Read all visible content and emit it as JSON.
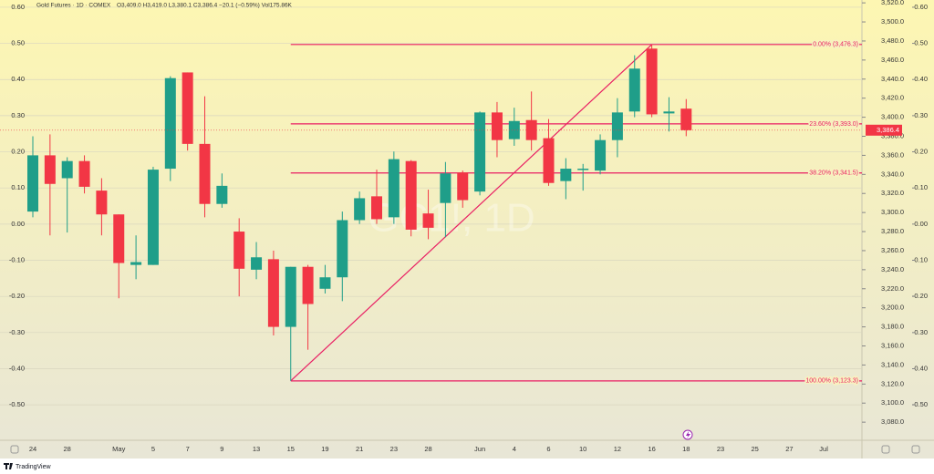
{
  "chart_data": {
    "type": "candlestick",
    "title": "Gold Futures · 1D · COMEX",
    "ohlc_text": "O3,409.0 H3,419.0 L3,380.1 C3,386.4 −20.1 (−0.59%) Vol175.86K",
    "watermark": "GC1!, 1D",
    "branding": "TradingView",
    "categories": [
      "24",
      null,
      "28",
      null,
      null,
      "May",
      null,
      "5",
      null,
      "7",
      null,
      "9",
      null,
      "13",
      null,
      "15",
      null,
      "19",
      null,
      "21",
      null,
      "23",
      null,
      "28",
      null,
      null,
      "Jun",
      null,
      "4",
      null,
      "6",
      null,
      "10",
      null,
      "12",
      null,
      "16",
      null,
      "18",
      null,
      "23",
      null,
      "25",
      null,
      "27",
      null,
      "Jul"
    ],
    "open": [
      3301,
      3360,
      3336,
      3354,
      3323,
      3298,
      3245,
      3245,
      3346,
      3447,
      3372,
      3309,
      3280,
      3240,
      3251,
      3180,
      3243,
      3220,
      3232,
      3292,
      3317,
      3295,
      3354,
      3299,
      3310,
      3342,
      3322,
      3405,
      3377,
      3397,
      3378,
      3333,
      3345,
      3344,
      3376,
      3406,
      3472,
      3404,
      3409,
      null,
      null,
      null,
      null,
      null,
      null,
      null,
      null
    ],
    "high": [
      3380,
      3382,
      3358,
      3360,
      3336,
      3298,
      3276,
      3348,
      3443,
      3447,
      3422,
      3341,
      3294,
      3269,
      3260,
      3243,
      3245,
      3245,
      3301,
      3322,
      3345,
      3364,
      3355,
      3324,
      3353,
      3344,
      3406,
      3416,
      3410,
      3427,
      3398,
      3357,
      3351,
      3382,
      3420,
      3465,
      3476.3,
      3421,
      3419.0,
      null,
      null,
      null,
      null,
      null,
      null,
      null,
      null
    ],
    "low": [
      3295,
      3276,
      3279,
      3320,
      3276,
      3210,
      3230,
      3245,
      3333,
      3365,
      3295,
      3305,
      3212,
      3230,
      3171,
      3123.3,
      3156,
      3215,
      3207,
      3288,
      3288,
      3288,
      3275,
      3272,
      3274,
      3305,
      3318,
      3358,
      3370,
      3365,
      3328,
      3314,
      3323,
      3340,
      3358,
      3400,
      3400,
      3385,
      3380.1,
      null,
      null,
      null,
      null,
      null,
      null,
      null,
      null
    ],
    "close": [
      3360,
      3330,
      3354,
      3327,
      3298,
      3247,
      3248,
      3345,
      3441,
      3372,
      3309,
      3328,
      3241,
      3253,
      3180,
      3243,
      3204,
      3232,
      3292,
      3315,
      3293,
      3356,
      3282,
      3284,
      3341,
      3313,
      3405,
      3376,
      3396,
      3376,
      3331,
      3346,
      3346,
      3376,
      3405,
      3451,
      3403,
      3406,
      3386.4,
      null,
      null,
      null,
      null,
      null,
      null,
      null,
      null
    ],
    "up_color": "#1f9e89",
    "down_color": "#f23645",
    "ylim": [
      3061,
      3523
    ],
    "yticks": [
      {
        "value": 3080,
        "label": "3,080.0"
      },
      {
        "value": 3100,
        "label": "3,100.0"
      },
      {
        "value": 3120,
        "label": "3,120.0"
      },
      {
        "value": 3140,
        "label": "3,140.0"
      },
      {
        "value": 3160,
        "label": "3,160.0"
      },
      {
        "value": 3180,
        "label": "3,180.0"
      },
      {
        "value": 3200,
        "label": "3,200.0"
      },
      {
        "value": 3220,
        "label": "3,220.0"
      },
      {
        "value": 3240,
        "label": "3,240.0"
      },
      {
        "value": 3260,
        "label": "3,260.0"
      },
      {
        "value": 3280,
        "label": "3,280.0"
      },
      {
        "value": 3300,
        "label": "3,300.0"
      },
      {
        "value": 3320,
        "label": "3,320.0"
      },
      {
        "value": 3340,
        "label": "3,340.0"
      },
      {
        "value": 3360,
        "label": "3,360.0"
      },
      {
        "value": 3380,
        "label": "3,380.0"
      },
      {
        "value": 3400,
        "label": "3,400.0"
      },
      {
        "value": 3420,
        "label": "3,420.0"
      },
      {
        "value": 3440,
        "label": "3,440.0"
      },
      {
        "value": 3460,
        "label": "3,460.0"
      },
      {
        "value": 3480,
        "label": "3,480.0"
      },
      {
        "value": 3500,
        "label": "3,500.0"
      },
      {
        "value": 3520,
        "label": "3,520.0"
      }
    ],
    "y2lim": [
      -0.598,
      0.62
    ],
    "y2ticks": [
      {
        "value": -0.5,
        "label": "-0.50"
      },
      {
        "value": -0.4,
        "label": "-0.40"
      },
      {
        "value": -0.3,
        "label": "-0.30"
      },
      {
        "value": -0.2,
        "label": "-0.20"
      },
      {
        "value": -0.1,
        "label": "-0.10"
      },
      {
        "value": 0,
        "label": "0.00"
      },
      {
        "value": 0.1,
        "label": "0.10"
      },
      {
        "value": 0.2,
        "label": "0.20"
      },
      {
        "value": 0.3,
        "label": "0.30"
      },
      {
        "value": 0.4,
        "label": "0.40"
      },
      {
        "value": 0.5,
        "label": "0.50"
      },
      {
        "value": 0.6,
        "label": "0.60"
      }
    ],
    "grid": true,
    "last_price": {
      "value": 3386.4,
      "label": "3,386.4"
    },
    "fib_color": "#e91e63",
    "fib_levels": [
      {
        "value": 3476.3,
        "label": "0.00% (3,476.3)"
      },
      {
        "value": 3393.0,
        "label": "23.60% (3,393.0)"
      },
      {
        "value": 3341.5,
        "label": "38.20% (3,341.5)"
      },
      {
        "value": 3123.3,
        "label": "100.00% (3,123.3)"
      }
    ]
  }
}
